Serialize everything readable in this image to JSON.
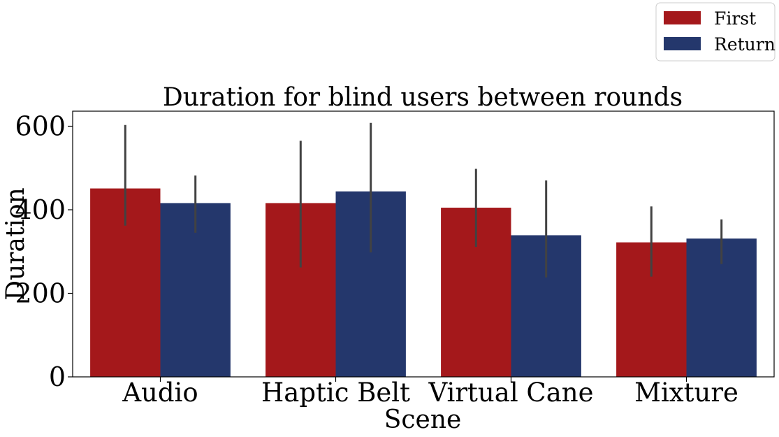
{
  "chart_data": {
    "type": "bar",
    "title": "Duration for blind users between rounds",
    "xlabel": "Scene",
    "ylabel": "Duration",
    "categories": [
      "Audio",
      "Haptic Belt",
      "Virtual Cane",
      "Mixture"
    ],
    "series": [
      {
        "name": "First",
        "color": "#a4181b",
        "values": [
          451,
          416,
          405,
          322
        ],
        "ci_low": [
          362,
          262,
          311,
          240
        ],
        "ci_high": [
          603,
          565,
          498,
          408
        ]
      },
      {
        "name": "Return",
        "color": "#24376c",
        "values": [
          416,
          444,
          339,
          331
        ],
        "ci_low": [
          345,
          298,
          238,
          270
        ],
        "ci_high": [
          482,
          608,
          470,
          377
        ]
      }
    ],
    "ylim": [
      0,
      636
    ],
    "yticks": [
      0,
      200,
      400,
      600
    ],
    "grid": false,
    "legend_position": "top-right"
  }
}
